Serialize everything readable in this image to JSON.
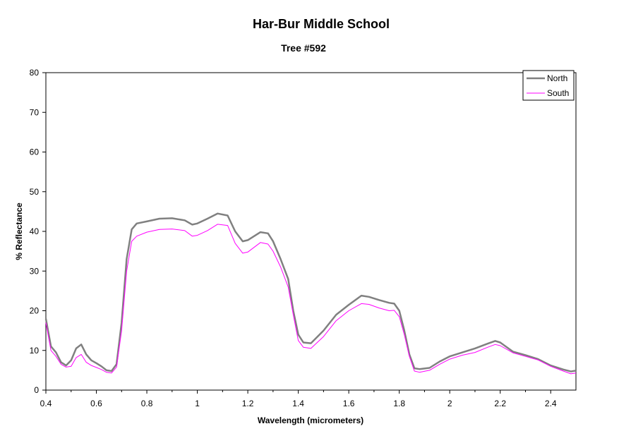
{
  "chart_data": {
    "type": "line",
    "title": "Har-Bur Middle School",
    "subtitle": "Tree #592",
    "xlabel": "Wavelength (micrometers)",
    "ylabel": "% Reflectance",
    "xlim": [
      0.4,
      2.5
    ],
    "ylim": [
      0,
      80
    ],
    "x_ticks": [
      0.4,
      0.6,
      0.8,
      1.0,
      1.2,
      1.4,
      1.6,
      1.8,
      2.0,
      2.2,
      2.4
    ],
    "x_tick_labels": [
      "0.4",
      "0.6",
      "0.8",
      "1",
      "1.2",
      "1.4",
      "1.6",
      "1.8",
      "2",
      "2.2",
      "2.4"
    ],
    "y_ticks": [
      0,
      10,
      20,
      30,
      40,
      50,
      60,
      70,
      80
    ],
    "y_tick_labels": [
      "0",
      "10",
      "20",
      "30",
      "40",
      "50",
      "60",
      "70",
      "80"
    ],
    "grid": false,
    "legend_position": "top-right",
    "series": [
      {
        "name": "North",
        "color": "#808080",
        "x": [
          0.4,
          0.42,
          0.44,
          0.46,
          0.48,
          0.5,
          0.52,
          0.54,
          0.56,
          0.58,
          0.6,
          0.62,
          0.64,
          0.66,
          0.68,
          0.7,
          0.72,
          0.74,
          0.76,
          0.8,
          0.85,
          0.9,
          0.95,
          0.98,
          1.0,
          1.04,
          1.08,
          1.12,
          1.15,
          1.18,
          1.2,
          1.25,
          1.28,
          1.3,
          1.33,
          1.36,
          1.38,
          1.4,
          1.42,
          1.45,
          1.5,
          1.55,
          1.6,
          1.65,
          1.68,
          1.72,
          1.76,
          1.78,
          1.8,
          1.82,
          1.84,
          1.86,
          1.88,
          1.92,
          1.96,
          2.0,
          2.05,
          2.1,
          2.15,
          2.18,
          2.2,
          2.25,
          2.3,
          2.35,
          2.4,
          2.45,
          2.48,
          2.5
        ],
        "values": [
          18,
          11,
          9.5,
          7,
          6.2,
          7.5,
          10.5,
          11.5,
          9,
          7.5,
          6.8,
          6.0,
          5.0,
          4.8,
          6.5,
          17,
          33,
          40.5,
          42,
          42.5,
          43.2,
          43.3,
          42.8,
          41.7,
          42.0,
          43.2,
          44.5,
          44.0,
          40.0,
          37.5,
          37.8,
          39.8,
          39.5,
          37.5,
          33,
          28,
          20,
          14,
          12,
          11.8,
          15,
          19,
          21.5,
          23.8,
          23.5,
          22.7,
          22.0,
          21.8,
          20,
          15,
          9,
          5.5,
          5.3,
          5.6,
          7.2,
          8.5,
          9.5,
          10.5,
          11.7,
          12.4,
          12.0,
          9.7,
          8.8,
          7.8,
          6.2,
          5.2,
          4.7,
          4.9
        ]
      },
      {
        "name": "South",
        "color": "#ff00ff",
        "x": [
          0.4,
          0.42,
          0.44,
          0.46,
          0.48,
          0.5,
          0.52,
          0.54,
          0.56,
          0.58,
          0.6,
          0.62,
          0.64,
          0.66,
          0.68,
          0.7,
          0.72,
          0.74,
          0.76,
          0.8,
          0.85,
          0.9,
          0.95,
          0.98,
          1.0,
          1.04,
          1.08,
          1.12,
          1.15,
          1.18,
          1.2,
          1.25,
          1.28,
          1.3,
          1.33,
          1.36,
          1.38,
          1.4,
          1.42,
          1.45,
          1.5,
          1.55,
          1.6,
          1.65,
          1.68,
          1.72,
          1.76,
          1.78,
          1.8,
          1.82,
          1.84,
          1.86,
          1.88,
          1.92,
          1.96,
          2.0,
          2.05,
          2.1,
          2.15,
          2.18,
          2.2,
          2.25,
          2.3,
          2.35,
          2.4,
          2.45,
          2.48,
          2.5
        ],
        "values": [
          17,
          10,
          8.5,
          6.5,
          5.8,
          6.0,
          8.2,
          9.0,
          7.0,
          6.2,
          5.7,
          5.2,
          4.5,
          4.3,
          5.8,
          15,
          30,
          37.5,
          38.8,
          39.8,
          40.5,
          40.6,
          40.2,
          38.8,
          39.0,
          40.2,
          41.8,
          41.5,
          37.0,
          34.5,
          34.8,
          37.2,
          36.8,
          35.0,
          31,
          26,
          19,
          12.5,
          10.8,
          10.5,
          13.5,
          17.5,
          20,
          21.8,
          21.6,
          20.7,
          20.0,
          20.1,
          18.5,
          14,
          8.5,
          4.8,
          4.5,
          5.0,
          6.5,
          7.8,
          8.8,
          9.5,
          10.8,
          11.5,
          11.2,
          9.4,
          8.5,
          7.6,
          6.0,
          4.8,
          4.1,
          4.3
        ]
      }
    ]
  }
}
